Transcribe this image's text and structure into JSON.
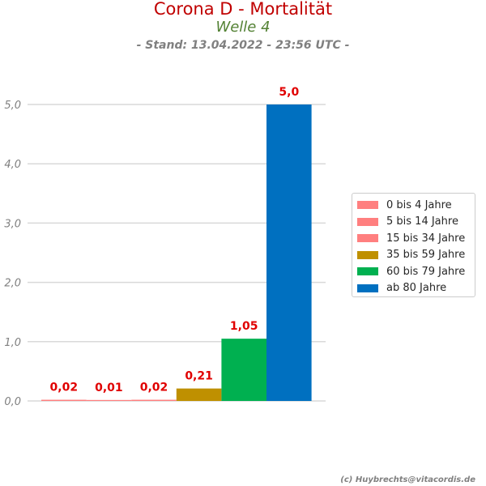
{
  "header": {
    "title": "Corona D - Mortalität",
    "subtitle": "Welle 4",
    "stand": "- Stand: 13.04.2022 - 23:56 UTC -"
  },
  "credit": "(c) Huybrechts@vitacordis.de",
  "chart_data": {
    "type": "bar",
    "categories": [
      "0 bis 4 Jahre",
      "5 bis 14 Jahre",
      "15 bis 34 Jahre",
      "35 bis 59 Jahre",
      "60 bis 79 Jahre",
      "ab 80 Jahre"
    ],
    "values": [
      0.02,
      0.01,
      0.02,
      0.21,
      1.05,
      5.0
    ],
    "value_labels": [
      "0,02",
      "0,01",
      "0,02",
      "0,21",
      "1,05",
      "5,0"
    ],
    "colors": [
      "#ff7f7f",
      "#ff7f7f",
      "#ff7f7f",
      "#bf9000",
      "#00b050",
      "#0070c0"
    ],
    "label_color": "#e00000",
    "ylim": [
      0,
      5
    ],
    "yticks": [
      0,
      1,
      2,
      3,
      4,
      5
    ],
    "ytick_labels": [
      "0,0",
      "1,0",
      "2,0",
      "3,0",
      "4,0",
      "5,0"
    ],
    "grid": true,
    "legend_position": "right"
  }
}
